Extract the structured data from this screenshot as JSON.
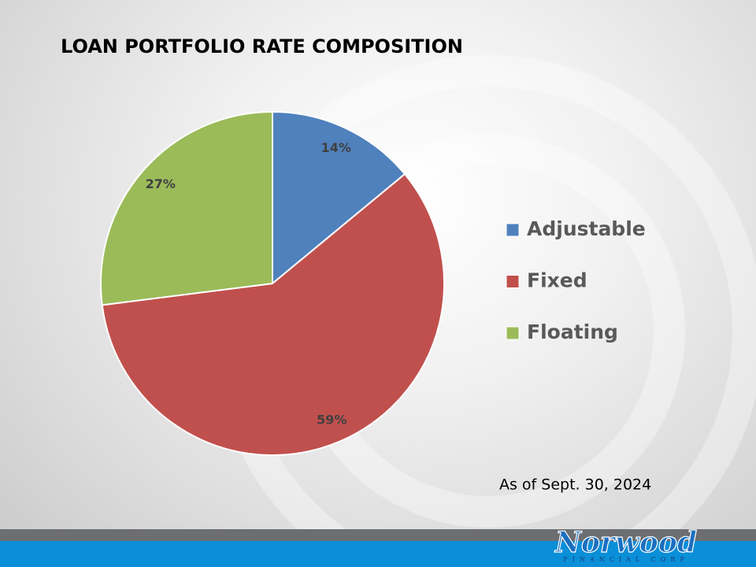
{
  "chart_data": {
    "type": "pie",
    "title": "LOAN PORTFOLIO RATE COMPOSITION",
    "categories": [
      "Adjustable",
      "Fixed",
      "Floating"
    ],
    "values": [
      14,
      59,
      27
    ],
    "value_labels": [
      "14%",
      "59%",
      "27%"
    ],
    "colors": [
      "#4f81bd",
      "#c0504d",
      "#9bbb59"
    ],
    "legend": "right",
    "note": "As of Sept. 30, 2024"
  },
  "footer": {
    "logo": "Norwood",
    "tagline": "FINANCIAL CORP"
  }
}
